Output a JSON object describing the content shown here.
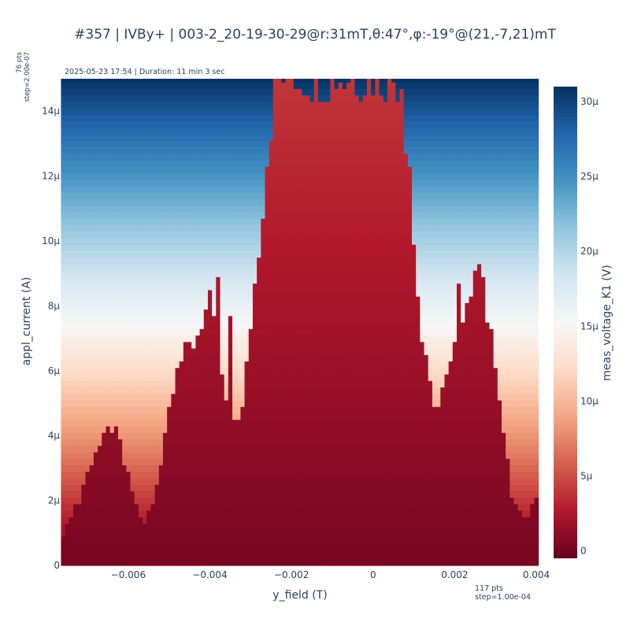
{
  "title": "#357 | IVBy+ | 003-2_20-19-30-29@r:31mT,θ:47°,φ:-19°@(21,-7,21)mT",
  "annotations": {
    "top": "2025-05-23 17:54 | Duration: 11 min 3 sec",
    "y_points": "76 pts",
    "y_step": "step=2.00e-07",
    "x_points": "117 pts",
    "x_step": "step=1.00e-04"
  },
  "chart_data": {
    "type": "heatmap",
    "xlabel": "y_field (T)",
    "ylabel": "appl_current (A)",
    "colorbar_label": "meas_voltage_K1 (V)",
    "colorscale": "RdBu",
    "x_range": [
      -0.0076,
      0.004
    ],
    "y_range": [
      0,
      1.5e-05
    ],
    "x_ticks": [
      {
        "value": -0.006,
        "label": "−0.006"
      },
      {
        "value": -0.004,
        "label": "−0.004"
      },
      {
        "value": -0.002,
        "label": "−0.002"
      },
      {
        "value": 0,
        "label": "0"
      },
      {
        "value": 0.002,
        "label": "0.002"
      },
      {
        "value": 0.004,
        "label": "0.004"
      }
    ],
    "y_ticks": [
      {
        "value": 0,
        "label": "0"
      },
      {
        "value": 2e-06,
        "label": "2μ"
      },
      {
        "value": 4e-06,
        "label": "4μ"
      },
      {
        "value": 6e-06,
        "label": "6μ"
      },
      {
        "value": 8e-06,
        "label": "8μ"
      },
      {
        "value": 1e-05,
        "label": "10μ"
      },
      {
        "value": 1.2e-05,
        "label": "12μ"
      },
      {
        "value": 1.4e-05,
        "label": "14μ"
      }
    ],
    "colorbar_range": [
      -5e-07,
      3.1e-05
    ],
    "colorbar_ticks": [
      {
        "value": 0,
        "label": "0"
      },
      {
        "value": 5e-06,
        "label": "5μ"
      },
      {
        "value": 1e-05,
        "label": "10μ"
      },
      {
        "value": 1.5e-05,
        "label": "15μ"
      },
      {
        "value": 2e-05,
        "label": "20μ"
      },
      {
        "value": 2.5e-05,
        "label": "25μ"
      },
      {
        "value": 3e-05,
        "label": "30μ"
      }
    ],
    "x_start": -0.0076,
    "x_step": 0.0001,
    "x_count": 117,
    "y_step": 2e-07,
    "y_count": 76,
    "normal_resistance_ohm": 2.05,
    "critical_current_profile": {
      "x": [
        -0.0076,
        -0.0074,
        -0.0072,
        -0.007,
        -0.0068,
        -0.0066,
        -0.0064,
        -0.0062,
        -0.006,
        -0.0058,
        -0.0056,
        -0.0054,
        -0.0052,
        -0.005,
        -0.0048,
        -0.0046,
        -0.0044,
        -0.0042,
        -0.004,
        -0.0038,
        -0.0036,
        -0.0034,
        -0.0032,
        -0.003,
        -0.0028,
        -0.0026,
        -0.0024,
        -0.0022,
        -0.002,
        -0.0018,
        -0.0014,
        -0.001,
        -0.0006,
        -0.0002,
        0.0002,
        0.0006,
        0.0008,
        0.001,
        0.0012,
        0.0014,
        0.0016,
        0.0018,
        0.002,
        0.0022,
        0.0024,
        0.0026,
        0.0028,
        0.003,
        0.0032,
        0.0034,
        0.0036,
        0.0038,
        0.004
      ],
      "ic": [
        1e-06,
        1.6e-06,
        2e-06,
        2.9e-06,
        3.5e-06,
        3.9e-06,
        4.3e-06,
        3.7e-06,
        2.7e-06,
        1.8e-06,
        1.3e-06,
        1.9e-06,
        3.3e-06,
        4.9e-06,
        6.3e-06,
        6.5e-06,
        6.8e-06,
        7.5e-06,
        8e-06,
        6.5e-06,
        5e-06,
        4.5e-06,
        4.8e-06,
        7.5e-06,
        1e-05,
        1.25e-05,
        1.51e-05,
        1.51e-05,
        1.51e-05,
        1.51e-05,
        1.51e-05,
        1.51e-05,
        1.51e-05,
        1.51e-05,
        1.51e-05,
        1.51e-05,
        1.51e-05,
        1e-05,
        7e-06,
        5.5e-06,
        4.9e-06,
        5.8e-06,
        6.5e-06,
        7.9e-06,
        8.5e-06,
        8.7e-06,
        7.5e-06,
        6.3e-06,
        4e-06,
        2.1e-06,
        1.7e-06,
        1.6e-06,
        2.1e-06
      ]
    },
    "outliers": [
      {
        "x": -0.0038,
        "ic": 8.9e-06
      },
      {
        "x": -0.0035,
        "ic": 7.8e-06
      },
      {
        "x": 0.0008,
        "ic": 1.27e-05
      },
      {
        "x": 0.0026,
        "ic": 9.4e-06
      },
      {
        "x": 0.0027,
        "ic": 9e-06
      },
      {
        "x": 0.0021,
        "ic": 8.7e-06
      }
    ]
  }
}
